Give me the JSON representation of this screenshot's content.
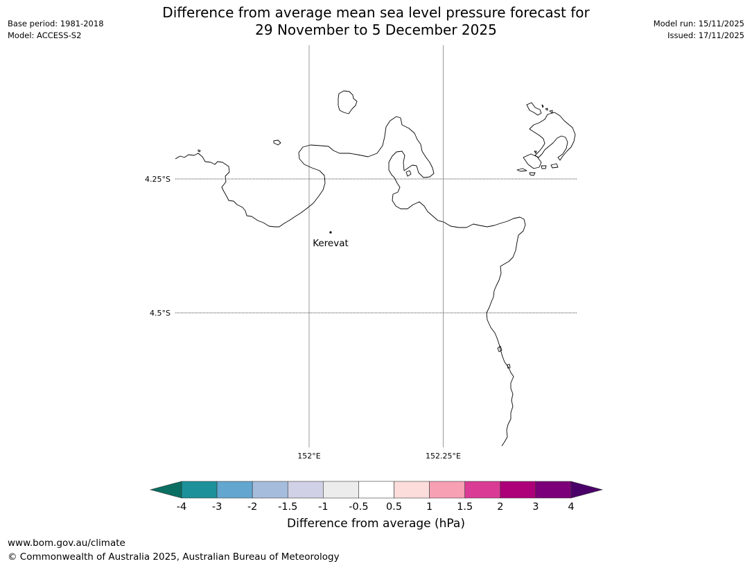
{
  "title_line1": "Difference from average mean sea level pressure forecast for",
  "title_line2": "29 November to 5 December 2025",
  "base_period": "Base period: 1981-2018",
  "model": "Model: ACCESS-S2",
  "model_run": "Model run: 15/11/2025",
  "issued": "Issued: 17/11/2025",
  "map": {
    "place_label": "Kerevat",
    "lon_labels": [
      "152°E",
      "152.25°E"
    ],
    "lat_labels": [
      "4.25°S",
      "4.5°S"
    ]
  },
  "colorbar": {
    "title": "Difference from average (hPa)",
    "tick_labels": [
      "-4",
      "-3",
      "-2",
      "-1.5",
      "-1",
      "-0.5",
      "0.5",
      "1",
      "1.5",
      "2",
      "3",
      "4"
    ],
    "colors": [
      "#0b6e62",
      "#1c9199",
      "#63a7d0",
      "#a6bcdc",
      "#d0d0e6",
      "#ececec",
      "#ffffff",
      "#fddcdc",
      "#f7a0b4",
      "#da3b95",
      "#ad0179",
      "#7b0079",
      "#4b0069"
    ]
  },
  "footer_url": "www.bom.gov.au/climate",
  "footer_copyright": "© Commonwealth of Australia 2025, Australian Bureau of Meteorology"
}
